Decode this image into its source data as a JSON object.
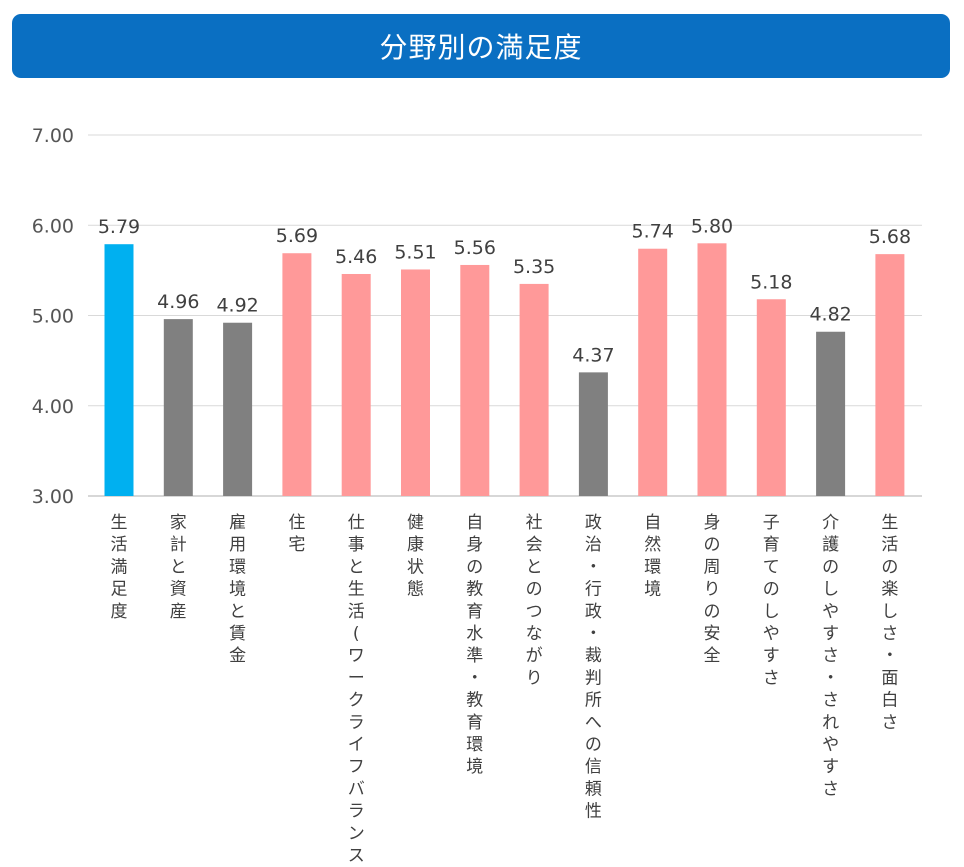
{
  "title": "分野別の満足度",
  "colors": {
    "banner": "#0a6fc2",
    "highlight": "#00b0f0",
    "gray": "#808080",
    "pink": "#ff9999"
  },
  "chart_data": {
    "type": "bar",
    "title": "分野別の満足度",
    "xlabel": "",
    "ylabel": "",
    "ylim": [
      3.0,
      7.0
    ],
    "yticks": [
      "3.00",
      "4.00",
      "5.00",
      "6.00",
      "7.00"
    ],
    "grid": true,
    "categories": [
      "生活満足度",
      "家計と資産",
      "雇用環境と賃金",
      "住宅",
      "仕事と生活(ワークライフバランス)",
      "健康状態",
      "自身の教育水準・教育環境",
      "社会とのつながり",
      "政治・行政・裁判所への信頼性",
      "自然環境",
      "身の周りの安全",
      "子育てのしやすさ",
      "介護のしやすさ・されやすさ",
      "生活の楽しさ・面白さ"
    ],
    "values": [
      5.79,
      4.96,
      4.92,
      5.69,
      5.46,
      5.51,
      5.56,
      5.35,
      4.37,
      5.74,
      5.8,
      5.18,
      4.82,
      5.68
    ],
    "value_labels": [
      "5.79",
      "4.96",
      "4.92",
      "5.69",
      "5.46",
      "5.51",
      "5.56",
      "5.35",
      "4.37",
      "5.74",
      "5.80",
      "5.18",
      "4.82",
      "5.68"
    ],
    "bar_colors": [
      "highlight",
      "gray",
      "gray",
      "pink",
      "pink",
      "pink",
      "pink",
      "pink",
      "gray",
      "pink",
      "pink",
      "pink",
      "gray",
      "pink"
    ]
  }
}
